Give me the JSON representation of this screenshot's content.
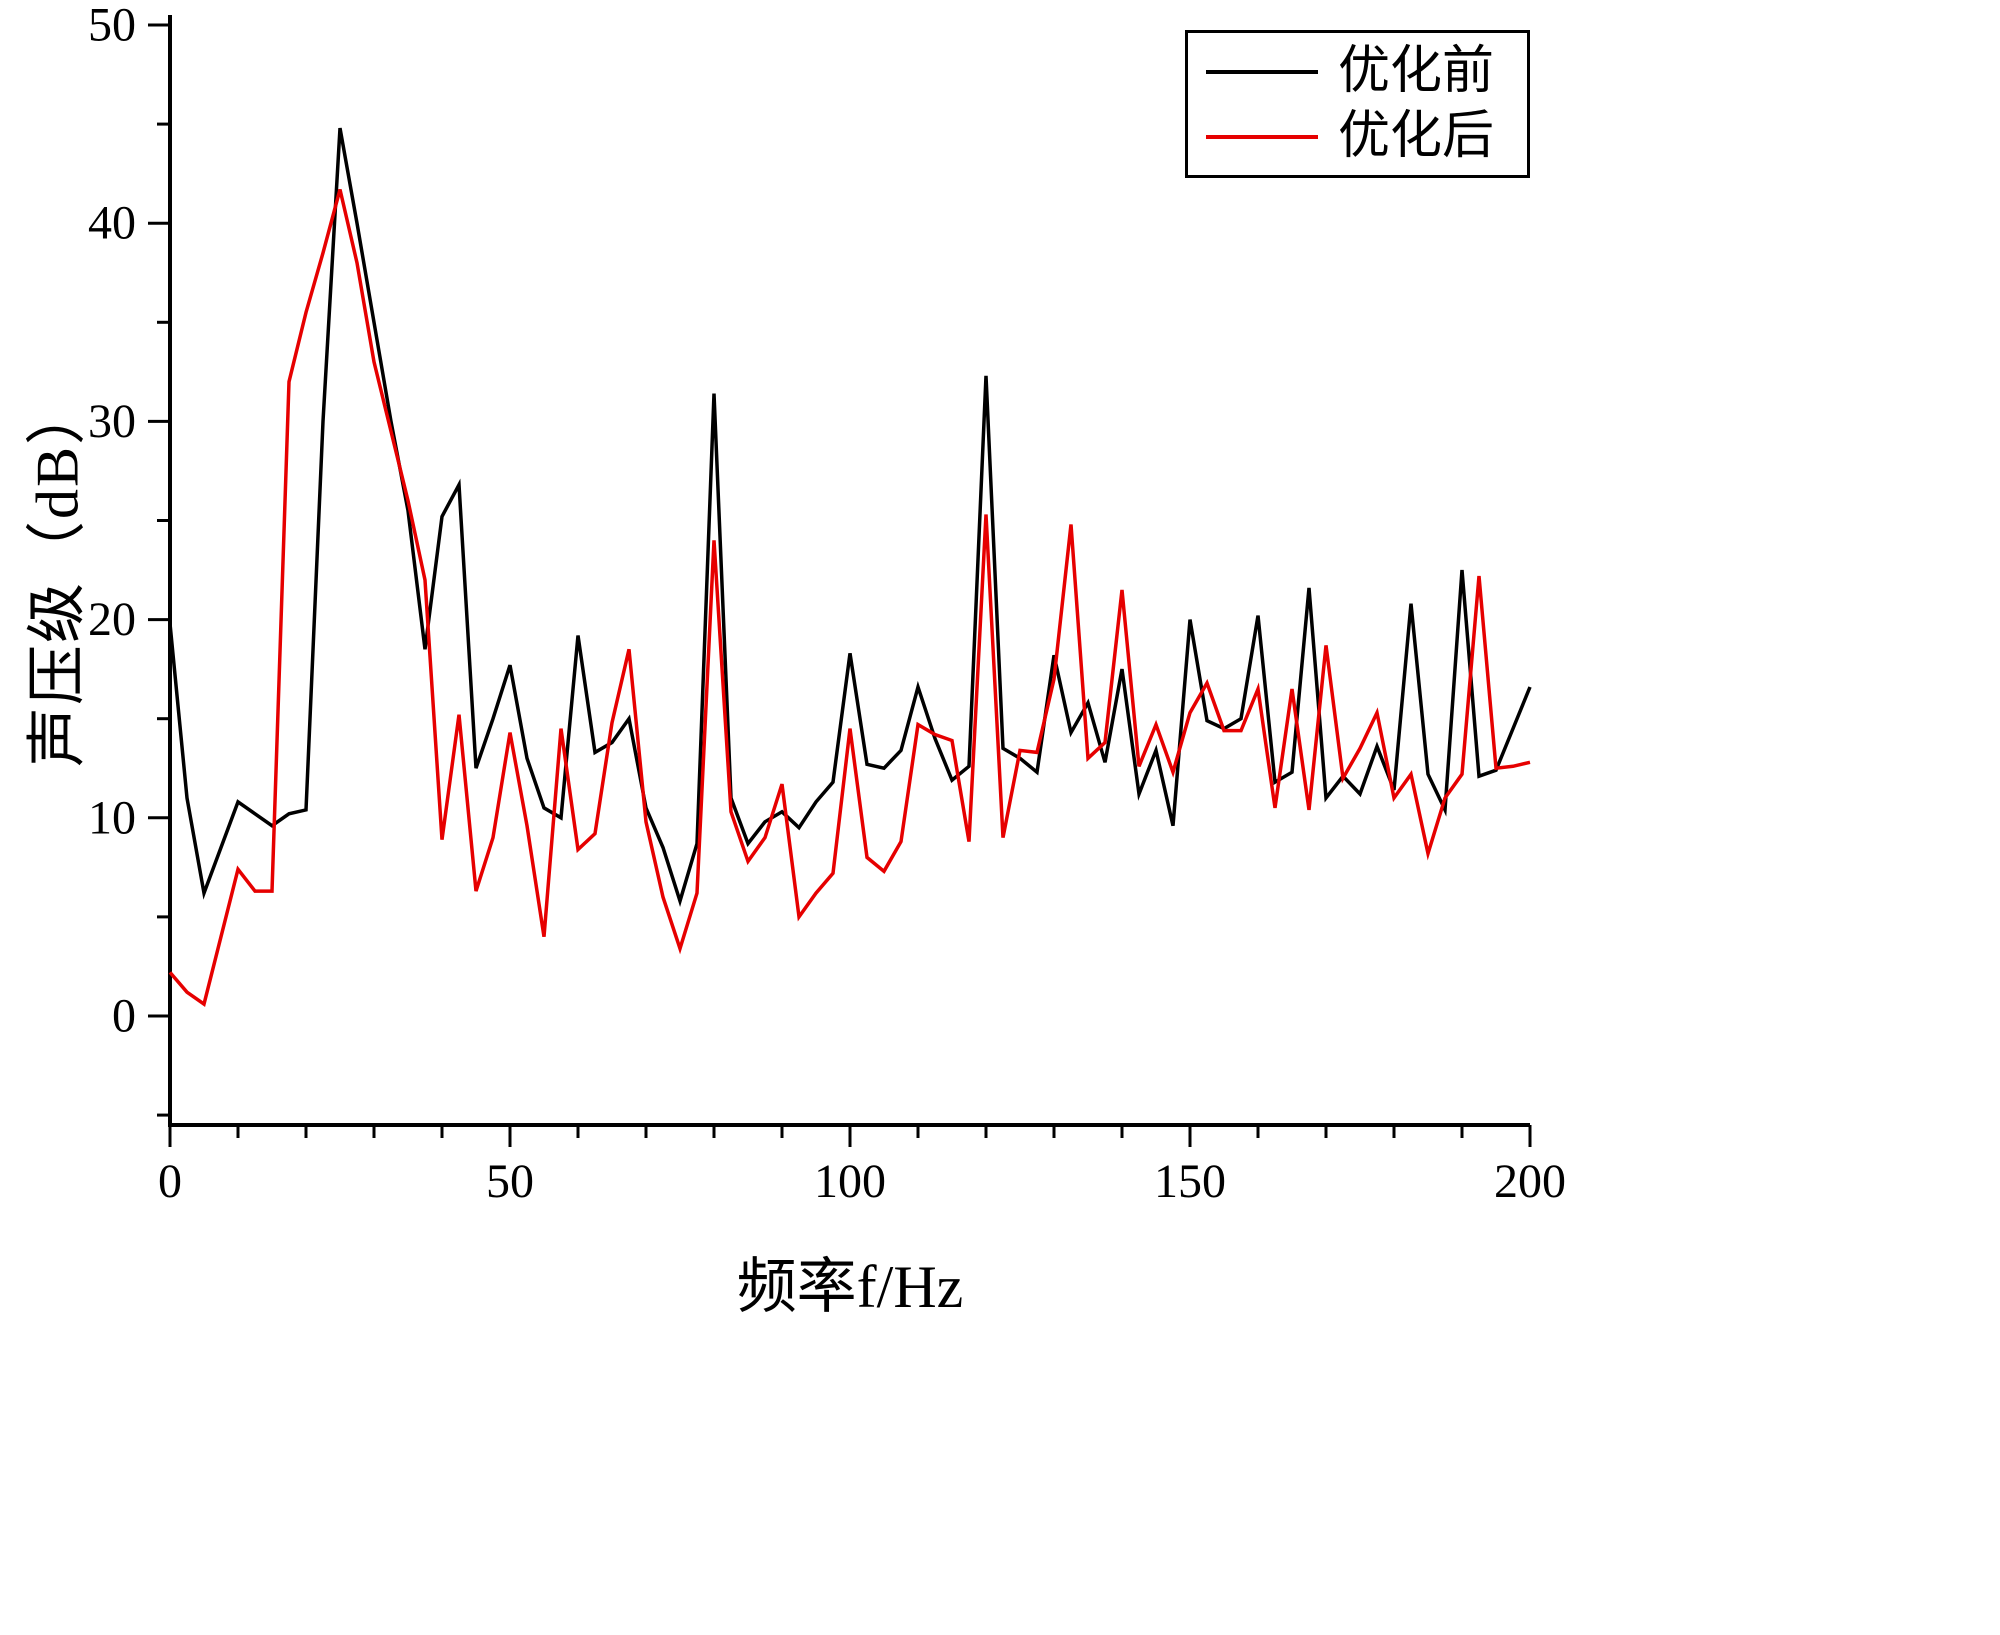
{
  "legend": {
    "items": [
      {
        "label": "优化前",
        "color": "#000000"
      },
      {
        "label": "优化后",
        "color": "#e60000"
      }
    ]
  },
  "axes": {
    "x_label": "频率f/Hz",
    "y_label": "声压级（dB）",
    "x_ticks": [
      0,
      50,
      100,
      150,
      200
    ],
    "y_ticks": [
      0,
      10,
      20,
      30,
      40,
      50
    ]
  },
  "chart_data": {
    "type": "line",
    "title": "",
    "xlabel": "频率f/Hz",
    "ylabel": "声压级（dB）",
    "xlim": [
      0,
      200
    ],
    "ylim": [
      -5.5,
      50
    ],
    "x_minor_step": 10,
    "y_minor_step": 5,
    "legend_position": "top-right",
    "grid": false,
    "x": [
      0,
      2.5,
      5,
      7.5,
      10,
      12.5,
      15,
      17.5,
      20,
      22.5,
      25,
      27.5,
      30,
      32.5,
      35,
      37.5,
      40,
      42.5,
      45,
      47.5,
      50,
      52.5,
      55,
      57.5,
      60,
      62.5,
      65,
      67.5,
      70,
      72.5,
      75,
      77.5,
      80,
      82.5,
      85,
      87.5,
      90,
      92.5,
      95,
      97.5,
      100,
      102.5,
      105,
      107.5,
      110,
      112.5,
      115,
      117.5,
      120,
      122.5,
      125,
      127.5,
      130,
      132.5,
      135,
      137.5,
      140,
      142.5,
      145,
      147.5,
      150,
      152.5,
      155,
      157.5,
      160,
      162.5,
      165,
      167.5,
      170,
      172.5,
      175,
      177.5,
      180,
      182.5,
      185,
      187.5,
      190,
      192.5,
      195,
      197.5,
      200
    ],
    "series": [
      {
        "name": "优化前",
        "color": "#000000",
        "values": [
          19.8,
          11.0,
          6.2,
          8.5,
          10.8,
          10.2,
          9.6,
          10.2,
          10.4,
          30.0,
          44.8,
          40.0,
          35.0,
          30.0,
          25.5,
          18.5,
          25.2,
          26.8,
          12.5,
          15.0,
          17.7,
          13.0,
          10.5,
          10.0,
          19.2,
          13.3,
          13.8,
          15.0,
          10.5,
          8.5,
          5.8,
          8.7,
          31.4,
          11.0,
          8.7,
          9.8,
          10.3,
          9.5,
          10.8,
          11.8,
          18.3,
          12.7,
          12.5,
          13.4,
          16.6,
          14.0,
          11.9,
          12.6,
          32.3,
          13.5,
          13.0,
          12.3,
          18.2,
          14.3,
          15.8,
          12.8,
          17.5,
          11.2,
          13.4,
          9.6,
          20.0,
          14.9,
          14.5,
          15.0,
          20.2,
          11.8,
          12.3,
          21.6,
          11.0,
          12.1,
          11.2,
          13.6,
          11.4,
          20.8,
          12.2,
          10.4,
          22.5,
          12.1,
          12.4,
          14.5,
          16.6
        ]
      },
      {
        "name": "优化后",
        "color": "#e60000",
        "values": [
          2.2,
          1.2,
          0.6,
          4.0,
          7.4,
          6.3,
          6.3,
          32.0,
          35.5,
          38.5,
          41.7,
          38.0,
          33.0,
          29.5,
          26.0,
          22.0,
          8.9,
          15.2,
          6.3,
          9.0,
          14.3,
          9.6,
          4.0,
          14.5,
          8.4,
          9.2,
          14.8,
          18.5,
          9.8,
          6.0,
          3.4,
          6.2,
          24.0,
          10.3,
          7.8,
          9.0,
          11.7,
          5.0,
          6.2,
          7.2,
          14.5,
          8.0,
          7.3,
          8.8,
          14.7,
          14.2,
          13.9,
          8.8,
          25.3,
          9.0,
          13.4,
          13.3,
          17.0,
          24.8,
          13.0,
          13.8,
          21.5,
          12.6,
          14.7,
          12.3,
          15.3,
          16.8,
          14.4,
          14.4,
          16.5,
          10.5,
          16.5,
          10.4,
          18.7,
          12.0,
          13.5,
          15.3,
          11.0,
          12.2,
          8.2,
          11.0,
          12.2,
          22.2,
          12.5,
          12.6,
          12.8
        ]
      }
    ]
  }
}
